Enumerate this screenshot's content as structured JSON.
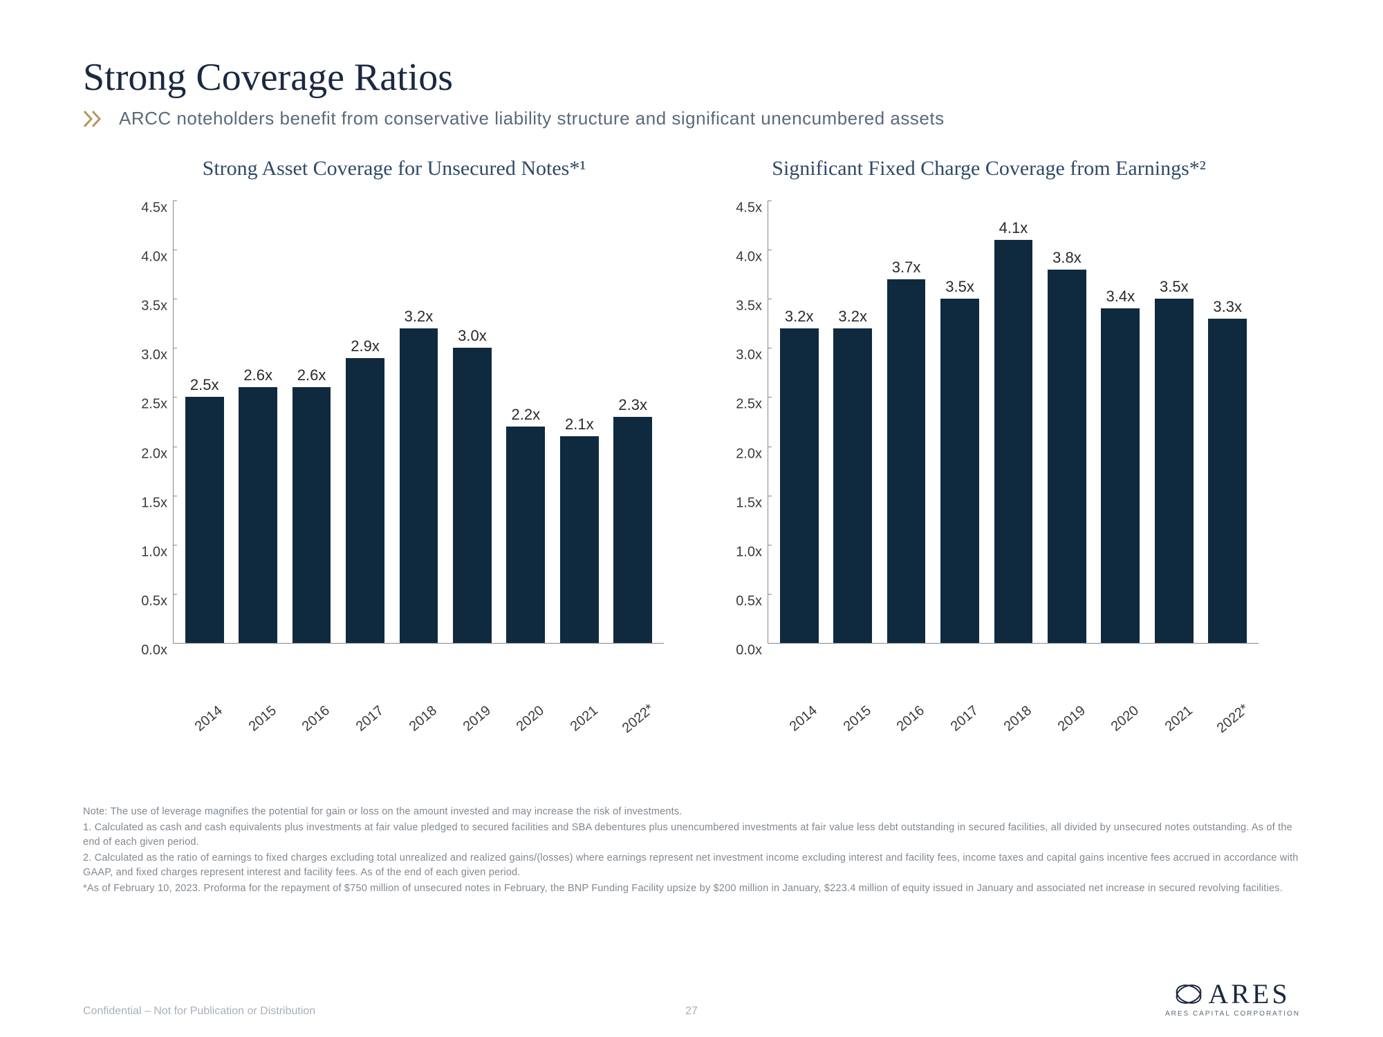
{
  "title": "Strong Coverage Ratios",
  "subtitle": "ARCC noteholders benefit from conservative liability structure and significant unencumbered assets",
  "chevron_color": "#b8945f",
  "chart_left": {
    "title": "Strong Asset Coverage for Unsecured Notes*¹",
    "type": "bar",
    "categories": [
      "2014",
      "2015",
      "2016",
      "2017",
      "2018",
      "2019",
      "2020",
      "2021",
      "2022*"
    ],
    "values": [
      2.5,
      2.6,
      2.6,
      2.9,
      3.2,
      3.0,
      2.2,
      2.1,
      2.3
    ],
    "labels": [
      "2.5x",
      "2.6x",
      "2.6x",
      "2.9x",
      "3.2x",
      "3.0x",
      "2.2x",
      "2.1x",
      "2.3x"
    ],
    "bar_color": "#0f2a3f",
    "ylim": [
      0.0,
      4.5
    ],
    "ytick_step": 0.5,
    "yticks": [
      "0.0x",
      "0.5x",
      "1.0x",
      "1.5x",
      "2.0x",
      "2.5x",
      "3.0x",
      "3.5x",
      "4.0x",
      "4.5x"
    ],
    "axis_color": "#888888",
    "label_fontsize": 20,
    "title_fontsize": 30,
    "title_color": "#304a66",
    "background_color": "#ffffff"
  },
  "chart_right": {
    "title": "Significant Fixed Charge Coverage from Earnings*²",
    "type": "bar",
    "categories": [
      "2014",
      "2015",
      "2016",
      "2017",
      "2018",
      "2019",
      "2020",
      "2021",
      "2022*"
    ],
    "values": [
      3.2,
      3.2,
      3.7,
      3.5,
      4.1,
      3.8,
      3.4,
      3.5,
      3.3
    ],
    "labels": [
      "3.2x",
      "3.2x",
      "3.7x",
      "3.5x",
      "4.1x",
      "3.8x",
      "3.4x",
      "3.5x",
      "3.3x"
    ],
    "bar_color": "#0f2a3f",
    "ylim": [
      0.0,
      4.5
    ],
    "ytick_step": 0.5,
    "yticks": [
      "0.0x",
      "0.5x",
      "1.0x",
      "1.5x",
      "2.0x",
      "2.5x",
      "3.0x",
      "3.5x",
      "4.0x",
      "4.5x"
    ],
    "axis_color": "#888888",
    "label_fontsize": 20,
    "title_fontsize": 30,
    "title_color": "#304a66",
    "background_color": "#ffffff"
  },
  "footnotes": {
    "note": "Note: The use of leverage magnifies the potential for gain or loss on the amount invested and may increase the risk of investments.",
    "n1": "1.  Calculated as cash and cash equivalents plus investments at fair value pledged to secured facilities and SBA debentures plus unencumbered investments at fair value less debt outstanding in secured facilities, all divided by unsecured notes outstanding. As of the end of each given period.",
    "n2": "2.  Calculated as the ratio of earnings to fixed charges excluding total unrealized and realized gains/(losses) where earnings represent net investment income excluding interest and facility fees, income taxes and capital gains incentive fees accrued in accordance with GAAP, and fixed charges represent interest and facility fees. As of the end of each given period.",
    "star": "*As of February 10, 2023. Proforma for the repayment of $750 million of unsecured notes in February, the BNP Funding Facility upsize by $200 million in January, $223.4 million of equity issued in January and associated net increase in secured revolving facilities."
  },
  "footer": {
    "confidential": "Confidential – Not for Publication or Distribution",
    "page": "27",
    "logo_text": "ARES",
    "logo_sub": "ARES CAPITAL CORPORATION"
  }
}
